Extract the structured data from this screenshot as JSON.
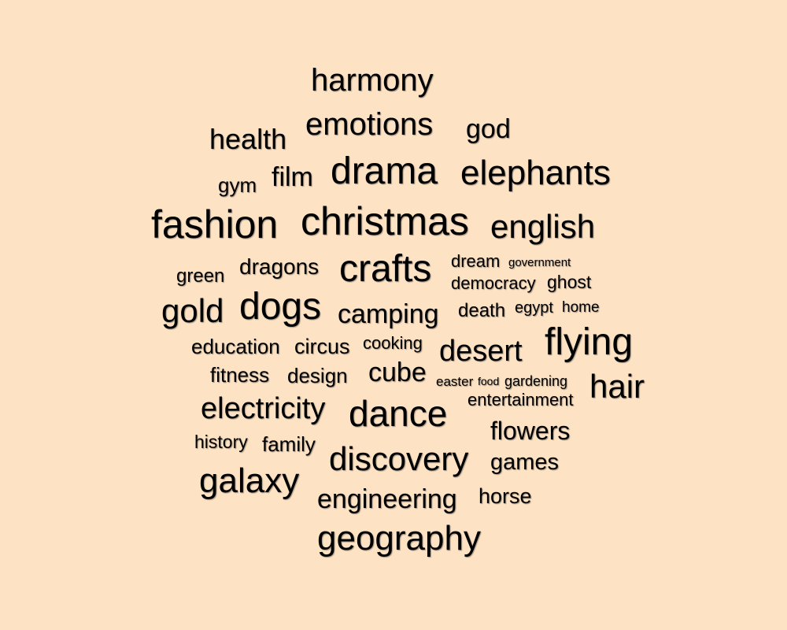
{
  "colors": {
    "background": "#fde2c4",
    "text": "#000000"
  },
  "words": [
    {
      "text": "harmony"
    },
    {
      "text": "emotions"
    },
    {
      "text": "health"
    },
    {
      "text": "god"
    },
    {
      "text": "gym"
    },
    {
      "text": "film"
    },
    {
      "text": "drama"
    },
    {
      "text": "elephants"
    },
    {
      "text": "fashion"
    },
    {
      "text": "christmas"
    },
    {
      "text": "english"
    },
    {
      "text": "green"
    },
    {
      "text": "dragons"
    },
    {
      "text": "crafts"
    },
    {
      "text": "dream"
    },
    {
      "text": "government"
    },
    {
      "text": "democracy"
    },
    {
      "text": "ghost"
    },
    {
      "text": "gold"
    },
    {
      "text": "dogs"
    },
    {
      "text": "camping"
    },
    {
      "text": "death"
    },
    {
      "text": "egypt"
    },
    {
      "text": "home"
    },
    {
      "text": "education"
    },
    {
      "text": "circus"
    },
    {
      "text": "cooking"
    },
    {
      "text": "desert"
    },
    {
      "text": "flying"
    },
    {
      "text": "fitness"
    },
    {
      "text": "design"
    },
    {
      "text": "cube"
    },
    {
      "text": "easter"
    },
    {
      "text": "food"
    },
    {
      "text": "gardening"
    },
    {
      "text": "hair"
    },
    {
      "text": "electricity"
    },
    {
      "text": "dance"
    },
    {
      "text": "entertainment"
    },
    {
      "text": "history"
    },
    {
      "text": "family"
    },
    {
      "text": "flowers"
    },
    {
      "text": "discovery"
    },
    {
      "text": "games"
    },
    {
      "text": "galaxy"
    },
    {
      "text": "engineering"
    },
    {
      "text": "horse"
    },
    {
      "text": "geography"
    }
  ]
}
